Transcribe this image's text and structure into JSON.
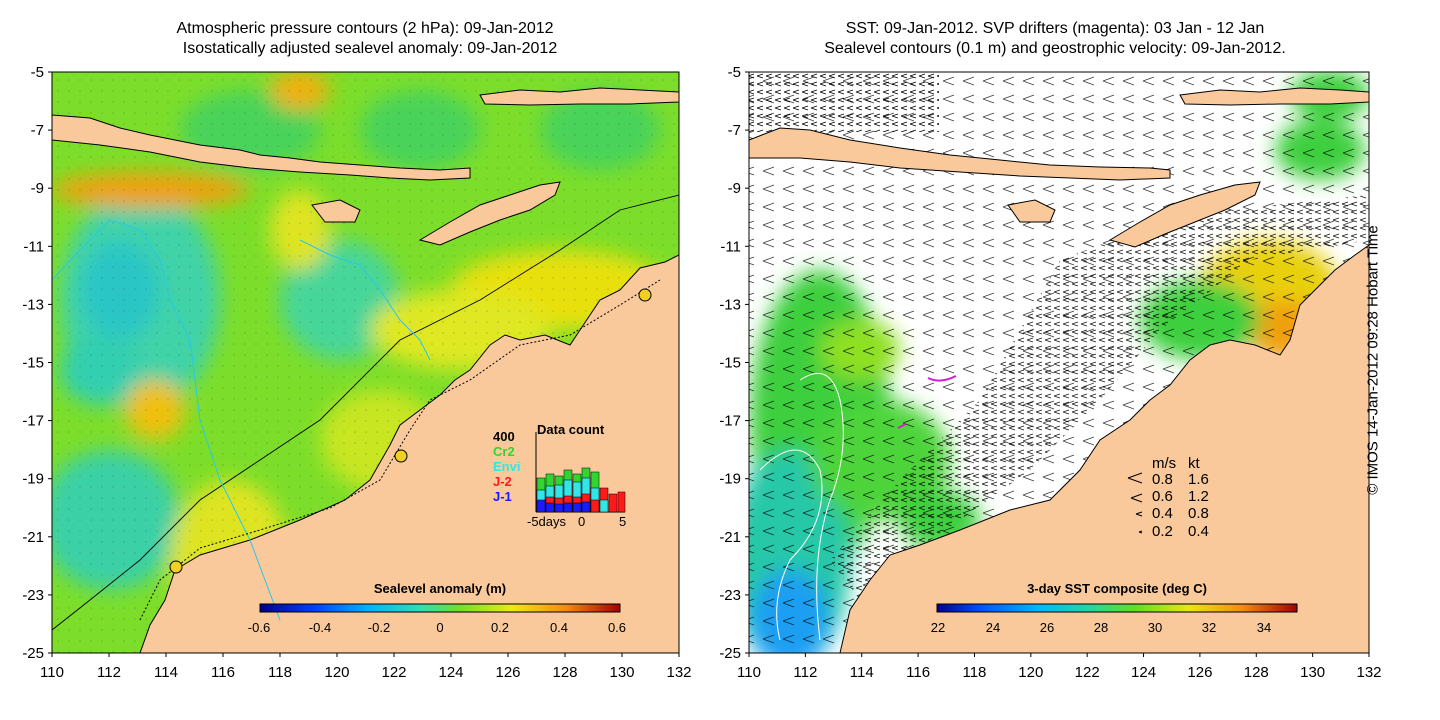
{
  "left_panel": {
    "title_line1": "Atmospheric pressure contours (2 hPa): 09-Jan-2012",
    "title_line2": "Isostatically adjusted sealevel anomaly: 09-Jan-2012",
    "colorbar_label": "Sealevel anomaly (m)",
    "colorbar_ticks": [
      "-0.6",
      "-0.4",
      "-0.2",
      "0",
      "0.2",
      "0.4",
      "0.6"
    ],
    "inset": {
      "title": "Data count",
      "y_max": "400",
      "missions": [
        "Cr2",
        "Envi",
        "J-2",
        "J-1"
      ],
      "mission_colors": [
        "#2fd62f",
        "#30e6e6",
        "#ff1a1a",
        "#1a1aff"
      ],
      "x_labels": [
        "-5days",
        "0",
        "5"
      ]
    }
  },
  "right_panel": {
    "title_line1": "SST: 09-Jan-2012. SVP drifters (magenta): 03 Jan - 12 Jan",
    "title_line2": "Sealevel contours (0.1 m) and geostrophic velocity: 09-Jan-2012.",
    "colorbar_label": "3-day SST composite (deg C)",
    "colorbar_ticks": [
      "22",
      "24",
      "26",
      "28",
      "30",
      "32",
      "34"
    ],
    "velocity_legend": {
      "header_ms": "m/s",
      "header_kt": "kt",
      "rows": [
        {
          "ms": "0.8",
          "kt": "1.6"
        },
        {
          "ms": "0.6",
          "kt": "1.2"
        },
        {
          "ms": "0.4",
          "kt": "0.8"
        },
        {
          "ms": "0.2",
          "kt": "0.4"
        }
      ]
    }
  },
  "axes": {
    "y_ticks": [
      "-5",
      "-7",
      "-9",
      "-11",
      "-13",
      "-15",
      "-17",
      "-19",
      "-21",
      "-23",
      "-25"
    ],
    "x_ticks": [
      "110",
      "112",
      "114",
      "116",
      "118",
      "120",
      "122",
      "124",
      "126",
      "128",
      "130",
      "132"
    ]
  },
  "colors": {
    "land": "#f9c99b",
    "sea_green": "#5dd62c",
    "sea_yellow": "#ddec12",
    "sea_cyan": "#2fcfb0",
    "sea_orange": "#f5a316",
    "sst_green": "#3ccf3c",
    "sst_blue": "#1f9ff2"
  },
  "copyright": "© IMOS 14-Jan-2012 09:28 Hobart Time"
}
